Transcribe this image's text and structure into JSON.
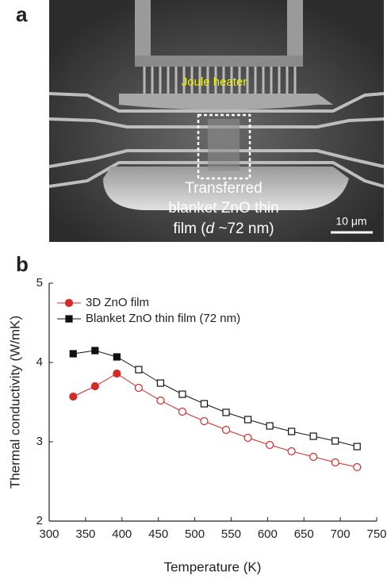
{
  "panel_a": {
    "label": "a",
    "heater_label": "Joule heater",
    "sample_label": {
      "lines": [
        "Transferred",
        "blanket ZnO thin"
      ],
      "last_line": [
        "film (",
        "d",
        " ~72 nm)"
      ]
    },
    "scale_bar": "10 μm"
  },
  "chart_data": {
    "type": "line",
    "panel_label": "b",
    "x_label": "Temperature (K)",
    "y_label": "Thermal conductivity (W/mK)",
    "x": [
      333,
      363,
      393,
      423,
      453,
      483,
      513,
      543,
      573,
      603,
      633,
      663,
      693,
      723
    ],
    "series": [
      {
        "name": "3D ZnO film",
        "color": "#d42a2a",
        "marker": "circle",
        "filled": [
          true,
          true,
          true,
          false,
          false,
          false,
          false,
          false,
          false,
          false,
          false,
          false,
          false,
          false
        ],
        "values": [
          3.57,
          3.7,
          3.86,
          3.68,
          3.52,
          3.38,
          3.26,
          3.15,
          3.05,
          2.96,
          2.88,
          2.81,
          2.74,
          2.68
        ]
      },
      {
        "name": "Blanket ZnO thin film (72 nm)",
        "color": "#111111",
        "marker": "square",
        "filled": [
          true,
          true,
          true,
          false,
          false,
          false,
          false,
          false,
          false,
          false,
          false,
          false,
          false,
          false
        ],
        "values": [
          4.11,
          4.15,
          4.07,
          3.91,
          3.74,
          3.6,
          3.48,
          3.37,
          3.28,
          3.2,
          3.13,
          3.07,
          3.01,
          2.94
        ]
      }
    ],
    "xlim": [
      300,
      750
    ],
    "xticks": [
      300,
      350,
      400,
      450,
      500,
      550,
      600,
      650,
      700,
      750
    ],
    "ylim": [
      2,
      5
    ],
    "yticks": [
      2,
      3,
      4,
      5
    ],
    "legend": "upper left"
  }
}
